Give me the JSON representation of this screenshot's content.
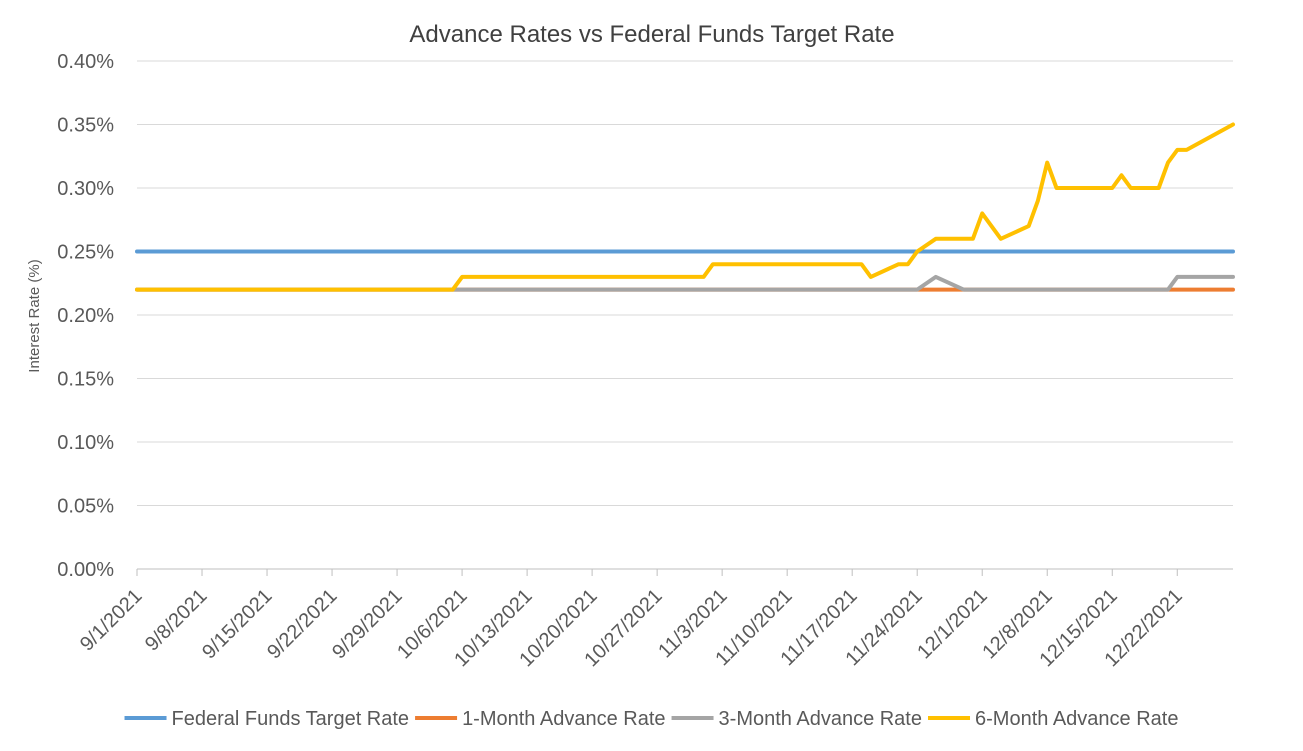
{
  "chart_data": {
    "type": "line",
    "title": "Advance Rates vs Federal Funds Target Rate",
    "xlabel": "",
    "ylabel": "Interest Rate (%)",
    "ylim": [
      0,
      0.4
    ],
    "yticks": [
      "0.00%",
      "0.05%",
      "0.10%",
      "0.15%",
      "0.20%",
      "0.25%",
      "0.30%",
      "0.35%",
      "0.40%"
    ],
    "xticks": [
      "9/1/2021",
      "9/8/2021",
      "9/15/2021",
      "9/22/2021",
      "9/29/2021",
      "10/6/2021",
      "10/13/2021",
      "10/20/2021",
      "10/27/2021",
      "11/3/2021",
      "11/10/2021",
      "11/17/2021",
      "11/24/2021",
      "12/1/2021",
      "12/8/2021",
      "12/15/2021",
      "12/22/2021"
    ],
    "xrange": [
      "2021-09-01",
      "2021-12-28"
    ],
    "grid": true,
    "legend_position": "bottom",
    "series": [
      {
        "name": "Federal Funds Target Rate",
        "color": "#5B9BD5",
        "points": [
          [
            "2021-09-01",
            0.25
          ],
          [
            "2021-12-28",
            0.25
          ]
        ]
      },
      {
        "name": "1-Month Advance Rate",
        "color": "#ED7D31",
        "points": [
          [
            "2021-09-01",
            0.22
          ],
          [
            "2021-12-28",
            0.22
          ]
        ]
      },
      {
        "name": "3-Month Advance Rate",
        "color": "#A5A5A5",
        "points": [
          [
            "2021-09-01",
            0.22
          ],
          [
            "2021-11-24",
            0.22
          ],
          [
            "2021-11-26",
            0.23
          ],
          [
            "2021-11-29",
            0.22
          ],
          [
            "2021-12-21",
            0.22
          ],
          [
            "2021-12-22",
            0.23
          ],
          [
            "2021-12-28",
            0.23
          ]
        ]
      },
      {
        "name": "6-Month Advance Rate",
        "color": "#FFC000",
        "points": [
          [
            "2021-09-01",
            0.22
          ],
          [
            "2021-10-05",
            0.22
          ],
          [
            "2021-10-06",
            0.23
          ],
          [
            "2021-11-01",
            0.23
          ],
          [
            "2021-11-02",
            0.24
          ],
          [
            "2021-11-18",
            0.24
          ],
          [
            "2021-11-19",
            0.23
          ],
          [
            "2021-11-22",
            0.24
          ],
          [
            "2021-11-23",
            0.24
          ],
          [
            "2021-11-24",
            0.25
          ],
          [
            "2021-11-26",
            0.26
          ],
          [
            "2021-11-30",
            0.26
          ],
          [
            "2021-12-01",
            0.28
          ],
          [
            "2021-12-03",
            0.26
          ],
          [
            "2021-12-06",
            0.27
          ],
          [
            "2021-12-07",
            0.29
          ],
          [
            "2021-12-08",
            0.32
          ],
          [
            "2021-12-09",
            0.3
          ],
          [
            "2021-12-15",
            0.3
          ],
          [
            "2021-12-16",
            0.31
          ],
          [
            "2021-12-17",
            0.3
          ],
          [
            "2021-12-20",
            0.3
          ],
          [
            "2021-12-21",
            0.32
          ],
          [
            "2021-12-22",
            0.33
          ],
          [
            "2021-12-23",
            0.33
          ],
          [
            "2021-12-28",
            0.35
          ]
        ]
      }
    ]
  }
}
